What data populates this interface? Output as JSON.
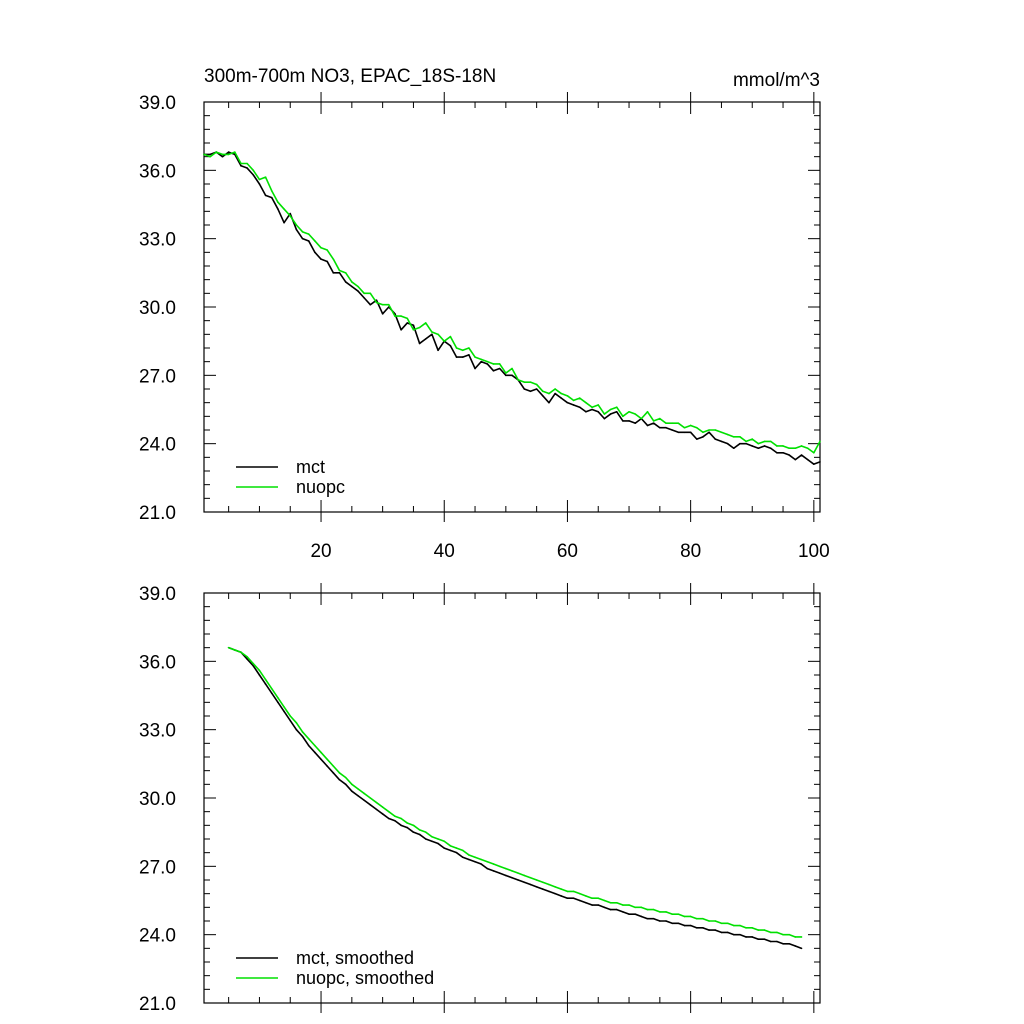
{
  "chart_data": [
    {
      "type": "line",
      "title": "300m-700m NO3, EPAC_18S-18N",
      "units": "mmol/m^3",
      "xlabel": "",
      "ylabel": "",
      "xlim": [
        1,
        101
      ],
      "ylim": [
        21,
        39
      ],
      "xticks": [
        20,
        40,
        60,
        80,
        100
      ],
      "xtick_labels": [
        "20",
        "40",
        "60",
        "80",
        "100"
      ],
      "yticks": [
        21,
        24,
        27,
        30,
        33,
        36,
        39
      ],
      "ytick_labels": [
        "21.0",
        "24.0",
        "27.0",
        "30.0",
        "33.0",
        "36.0",
        "39.0"
      ],
      "legend_position": "bottom-left",
      "series": [
        {
          "name": "mct",
          "color": "#000000",
          "x_start": 1,
          "values": [
            36.7,
            36.7,
            36.8,
            36.6,
            36.8,
            36.7,
            36.2,
            36.1,
            35.8,
            35.4,
            34.9,
            34.8,
            34.3,
            33.7,
            34.1,
            33.4,
            33.0,
            32.9,
            32.4,
            32.1,
            32.0,
            31.5,
            31.5,
            31.1,
            30.9,
            30.7,
            30.4,
            30.1,
            30.3,
            29.7,
            30.0,
            29.7,
            29.0,
            29.3,
            29.2,
            28.4,
            28.6,
            28.8,
            28.1,
            28.5,
            28.3,
            27.8,
            27.8,
            27.9,
            27.3,
            27.6,
            27.5,
            27.2,
            27.3,
            27.0,
            27.0,
            26.8,
            26.4,
            26.3,
            26.4,
            26.1,
            25.8,
            26.2,
            26.0,
            25.8,
            25.7,
            25.6,
            25.4,
            25.5,
            25.4,
            25.1,
            25.3,
            25.4,
            25.0,
            25.0,
            24.9,
            25.1,
            24.8,
            24.9,
            24.7,
            24.7,
            24.6,
            24.5,
            24.5,
            24.5,
            24.2,
            24.3,
            24.5,
            24.2,
            24.1,
            24.0,
            23.8,
            24.0,
            24.0,
            23.9,
            23.8,
            23.9,
            23.8,
            23.6,
            23.6,
            23.5,
            23.3,
            23.5,
            23.3,
            23.1,
            23.2
          ]
        },
        {
          "name": "nuopc",
          "color": "#00e000",
          "x_start": 1,
          "values": [
            36.7,
            36.6,
            36.8,
            36.7,
            36.7,
            36.8,
            36.3,
            36.3,
            36.0,
            35.6,
            35.7,
            35.1,
            34.6,
            34.3,
            34.0,
            33.6,
            33.3,
            33.2,
            32.9,
            32.6,
            32.5,
            32.1,
            31.6,
            31.5,
            31.1,
            30.9,
            30.6,
            30.6,
            30.2,
            30.1,
            30.1,
            29.6,
            29.6,
            29.5,
            29.0,
            29.1,
            29.3,
            28.9,
            28.8,
            28.5,
            28.7,
            28.2,
            28.1,
            28.2,
            27.8,
            27.7,
            27.6,
            27.5,
            27.5,
            27.1,
            27.3,
            26.8,
            26.7,
            26.7,
            26.6,
            26.3,
            26.2,
            26.4,
            26.2,
            26.1,
            25.9,
            26.0,
            25.8,
            25.6,
            25.7,
            25.3,
            25.5,
            25.6,
            25.2,
            25.4,
            25.3,
            25.1,
            25.4,
            25.0,
            25.1,
            24.9,
            24.9,
            24.9,
            24.7,
            24.8,
            24.7,
            24.5,
            24.6,
            24.6,
            24.5,
            24.4,
            24.3,
            24.3,
            24.1,
            24.2,
            24.0,
            24.1,
            24.1,
            23.9,
            23.9,
            23.8,
            23.8,
            23.9,
            23.8,
            23.6,
            24.1
          ]
        }
      ]
    },
    {
      "type": "line",
      "title": "",
      "xlabel": "",
      "ylabel": "",
      "xlim": [
        1,
        101
      ],
      "ylim": [
        21,
        39
      ],
      "xticks": [
        20,
        40,
        60,
        80,
        100
      ],
      "xtick_labels": [],
      "yticks": [
        21,
        24,
        27,
        30,
        33,
        36,
        39
      ],
      "ytick_labels": [
        "21.0",
        "24.0",
        "27.0",
        "30.0",
        "33.0",
        "36.0",
        "39.0"
      ],
      "legend_position": "bottom-left",
      "series": [
        {
          "name": "mct, smoothed",
          "color": "#000000",
          "x_start": 5,
          "values": [
            36.6,
            36.5,
            36.4,
            36.1,
            35.8,
            35.4,
            35.0,
            34.6,
            34.2,
            33.8,
            33.4,
            33.0,
            32.7,
            32.3,
            32.0,
            31.7,
            31.4,
            31.1,
            30.8,
            30.6,
            30.3,
            30.1,
            29.9,
            29.7,
            29.5,
            29.3,
            29.1,
            29.0,
            28.8,
            28.7,
            28.5,
            28.4,
            28.2,
            28.1,
            28.0,
            27.8,
            27.7,
            27.6,
            27.4,
            27.3,
            27.2,
            27.1,
            26.9,
            26.8,
            26.7,
            26.6,
            26.5,
            26.4,
            26.3,
            26.2,
            26.1,
            26.0,
            25.9,
            25.8,
            25.7,
            25.6,
            25.6,
            25.5,
            25.4,
            25.3,
            25.3,
            25.2,
            25.1,
            25.1,
            25.0,
            24.9,
            24.9,
            24.8,
            24.7,
            24.7,
            24.6,
            24.6,
            24.5,
            24.5,
            24.4,
            24.4,
            24.3,
            24.3,
            24.2,
            24.2,
            24.1,
            24.1,
            24.0,
            24.0,
            23.9,
            23.9,
            23.8,
            23.8,
            23.7,
            23.7,
            23.6,
            23.6,
            23.5,
            23.4
          ]
        },
        {
          "name": "nuopc, smoothed",
          "color": "#00e000",
          "x_start": 5,
          "values": [
            36.6,
            36.5,
            36.4,
            36.2,
            35.9,
            35.6,
            35.2,
            34.8,
            34.4,
            34.0,
            33.6,
            33.3,
            32.9,
            32.6,
            32.3,
            32.0,
            31.7,
            31.4,
            31.1,
            30.9,
            30.6,
            30.4,
            30.2,
            30.0,
            29.8,
            29.6,
            29.4,
            29.2,
            29.1,
            28.9,
            28.8,
            28.6,
            28.5,
            28.3,
            28.2,
            28.1,
            27.9,
            27.8,
            27.7,
            27.5,
            27.4,
            27.3,
            27.2,
            27.1,
            27.0,
            26.9,
            26.8,
            26.7,
            26.6,
            26.5,
            26.4,
            26.3,
            26.2,
            26.1,
            26.0,
            25.9,
            25.9,
            25.8,
            25.7,
            25.6,
            25.6,
            25.5,
            25.4,
            25.4,
            25.3,
            25.3,
            25.2,
            25.2,
            25.1,
            25.1,
            25.0,
            25.0,
            24.9,
            24.9,
            24.8,
            24.8,
            24.7,
            24.7,
            24.6,
            24.6,
            24.5,
            24.5,
            24.4,
            24.4,
            24.3,
            24.3,
            24.2,
            24.2,
            24.1,
            24.1,
            24.0,
            24.0,
            23.9,
            23.9
          ]
        }
      ]
    }
  ]
}
